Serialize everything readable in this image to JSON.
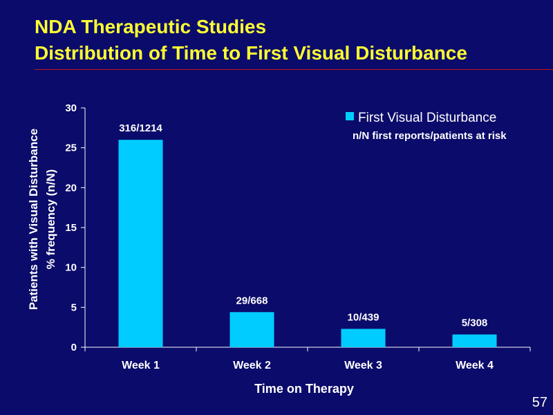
{
  "slide": {
    "title_line1": "NDA Therapeutic Studies",
    "title_line2": "Distribution of Time to First Visual Disturbance",
    "slide_number": "57",
    "colors": {
      "background": "#0b0b6b",
      "title": "#ffff33",
      "rule": "#c01818",
      "bar": "#00ccff",
      "text": "#ffffff"
    }
  },
  "chart_data": {
    "type": "bar",
    "categories": [
      "Week 1",
      "Week 2",
      "Week 3",
      "Week 4"
    ],
    "series": [
      {
        "name": "First Visual Disturbance",
        "values": [
          26.0,
          4.4,
          2.3,
          1.6
        ]
      }
    ],
    "data_labels": [
      "316/1214",
      "29/668",
      "10/439",
      "5/308"
    ],
    "legend": {
      "entry": "First Visual Disturbance",
      "note": "n/N first reports/patients at risk",
      "placement": "top-right"
    },
    "xlabel": "Time on Therapy",
    "ylabel_line1": "Patients with Visual Disturbance",
    "ylabel_line2": "% frequency (n/N)",
    "ylim": [
      0,
      30
    ],
    "yticks": [
      0,
      5,
      10,
      15,
      20,
      25,
      30
    ],
    "grid": false
  }
}
